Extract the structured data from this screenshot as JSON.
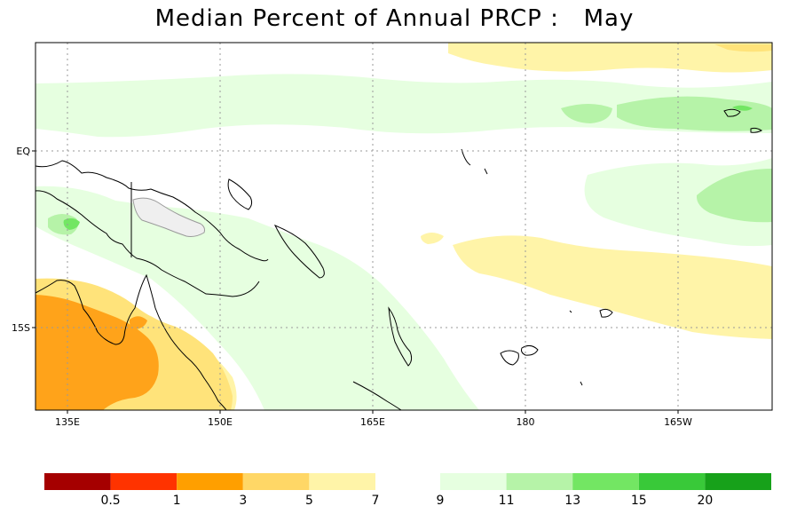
{
  "title": "Median Percent of Annual PRCP :   May",
  "map": {
    "lat_labels": [
      "EQ",
      "15S"
    ],
    "lon_labels": [
      "135E",
      "150E",
      "165E",
      "180",
      "165W"
    ]
  },
  "legend": {
    "left_colors": [
      "#a50000",
      "#ff3300",
      "#ff9f00",
      "#ffd766",
      "#fff4a8"
    ],
    "left_labels": [
      "0.5",
      "1",
      "3",
      "5",
      "7"
    ],
    "right_colors": [
      "#e6ffe0",
      "#b6f3a8",
      "#73e663",
      "#39c939",
      "#17a11a"
    ],
    "right_labels": [
      "9",
      "11",
      "13",
      "15",
      "20"
    ]
  },
  "colors": {
    "pale_yellow": "#fff4a8",
    "light_yellow": "#ffe37a",
    "orange": "#ffa31a",
    "light_green": "#e6ffe0",
    "mid_green": "#b6f3a8",
    "bright_green": "#73e663",
    "land_outline": "#000000",
    "grid": "#9a9a9a"
  }
}
